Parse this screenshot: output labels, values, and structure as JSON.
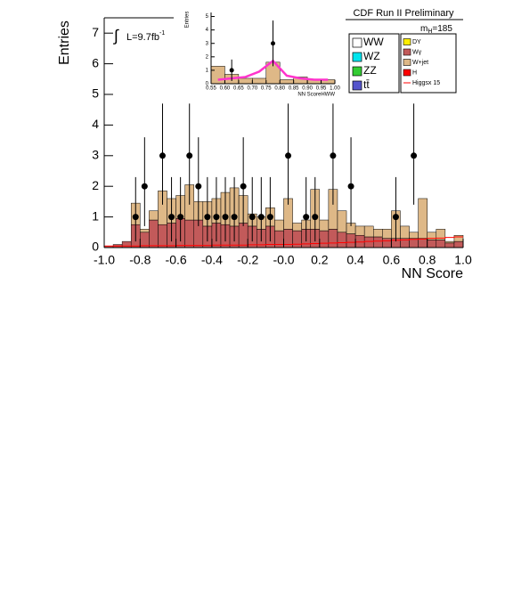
{
  "chart_data": {
    "type": "stacked_histogram",
    "title": "CDF Run II Preliminary",
    "x_label": "NN Score",
    "y_label": "Entries",
    "lumi": {
      "prefix": "∫",
      "text": "L=9.7fb",
      "sup": "-1"
    },
    "mass": {
      "text": "m",
      "sub": "H",
      "rest": "=185"
    },
    "bins": [
      -1.0,
      -0.95,
      -0.9,
      -0.85,
      -0.8,
      -0.75,
      -0.7,
      -0.65,
      -0.6,
      -0.55,
      -0.5,
      -0.45,
      -0.4,
      -0.35,
      -0.3,
      -0.25,
      -0.2,
      -0.15,
      -0.1,
      -0.05,
      0.0,
      0.05,
      0.1,
      0.15,
      0.2,
      0.25,
      0.3,
      0.35,
      0.4,
      0.45,
      0.5,
      0.55,
      0.6,
      0.65,
      0.7,
      0.75,
      0.8,
      0.85,
      0.9,
      0.95,
      1.0
    ],
    "series": [
      {
        "color": "#c25a5a",
        "values": [
          0.05,
          0.1,
          0.2,
          0.75,
          0.5,
          0.9,
          0.75,
          0.8,
          0.95,
          0.9,
          0.9,
          0.7,
          0.8,
          0.75,
          0.7,
          0.8,
          0.7,
          0.6,
          0.7,
          0.55,
          0.6,
          0.55,
          0.6,
          0.6,
          0.55,
          0.6,
          0.5,
          0.45,
          0.4,
          0.35,
          0.35,
          0.3,
          0.3,
          0.3,
          0.3,
          0.3,
          0.25,
          0.25,
          0.15,
          0.2
        ]
      },
      {
        "color": "#deb887",
        "values": [
          0,
          0,
          0,
          0.7,
          0.1,
          0.3,
          1.1,
          0.8,
          0.75,
          1.15,
          0.6,
          0.8,
          0.8,
          1.05,
          1.25,
          0.9,
          0.4,
          0.4,
          0.6,
          0.35,
          1.0,
          0.25,
          0.3,
          1.3,
          0.35,
          1.3,
          0.7,
          0.35,
          0.3,
          0.35,
          0.25,
          0.3,
          0.9,
          0.4,
          0.2,
          1.3,
          0.25,
          0.35,
          0.05,
          0.2
        ]
      }
    ],
    "signal": {
      "color": "#ff0000",
      "values": [
        0.05,
        0.05,
        0.05,
        0.05,
        0.06,
        0.06,
        0.06,
        0.06,
        0.07,
        0.07,
        0.07,
        0.07,
        0.08,
        0.08,
        0.08,
        0.08,
        0.09,
        0.09,
        0.1,
        0.1,
        0.1,
        0.11,
        0.12,
        0.13,
        0.14,
        0.15,
        0.16,
        0.17,
        0.18,
        0.2,
        0.21,
        0.22,
        0.24,
        0.25,
        0.27,
        0.28,
        0.3,
        0.31,
        0.33,
        0.35
      ]
    },
    "data": {
      "x": [
        -0.825,
        -0.775,
        -0.675,
        -0.625,
        -0.575,
        -0.525,
        -0.475,
        -0.425,
        -0.375,
        -0.325,
        -0.275,
        -0.225,
        -0.175,
        -0.125,
        -0.075,
        0.025,
        0.125,
        0.175,
        0.275,
        0.375,
        0.625,
        0.725
      ],
      "values": [
        1,
        2,
        3,
        1,
        1,
        3,
        2,
        1,
        1,
        1,
        1,
        2,
        1,
        1,
        1,
        3,
        1,
        1,
        3,
        2,
        1,
        3
      ],
      "errors_up": [
        1.3,
        1.6,
        1.7,
        1.3,
        1.3,
        1.7,
        1.6,
        1.3,
        1.3,
        1.3,
        1.3,
        1.6,
        1.3,
        1.3,
        1.3,
        1.7,
        1.3,
        1.3,
        1.7,
        1.6,
        1.3,
        1.7
      ],
      "errors_down": [
        0.8,
        1.3,
        1.6,
        0.8,
        0.8,
        1.6,
        1.3,
        0.8,
        0.8,
        0.8,
        0.8,
        1.3,
        0.8,
        0.8,
        0.8,
        1.6,
        0.8,
        0.8,
        1.6,
        1.3,
        0.8,
        1.6
      ]
    },
    "xlim": [
      -1.0,
      1.0
    ],
    "ylim": [
      0,
      7.5
    ],
    "xticks": [
      {
        "value": -1.0,
        "label": "-1.0"
      },
      {
        "value": -0.8,
        "label": "-0.8"
      },
      {
        "value": -0.6,
        "label": "-0.6"
      },
      {
        "value": -0.4,
        "label": "-0.4"
      },
      {
        "value": -0.2,
        "label": "-0.2"
      },
      {
        "value": 0.0,
        "label": "-0.0"
      },
      {
        "value": 0.2,
        "label": "0.2"
      },
      {
        "value": 0.4,
        "label": "0.4"
      },
      {
        "value": 0.6,
        "label": "0.6"
      },
      {
        "value": 0.8,
        "label": "0.8"
      },
      {
        "value": 1.0,
        "label": "1.0"
      }
    ],
    "yticks": [
      0,
      1,
      2,
      3,
      4,
      5,
      6,
      7
    ],
    "legend": [
      {
        "name": "WW",
        "color": "#ffffff"
      },
      {
        "name": "WZ",
        "color": "#00e5ee"
      },
      {
        "name": "ZZ",
        "color": "#33cc33"
      },
      {
        "name": "tt̄",
        "color": "#5555cc"
      },
      {
        "name": "DY",
        "color": "#ffee00"
      },
      {
        "name": "Wγ",
        "color": "#c25a5a"
      },
      {
        "name": "W+jet",
        "color": "#deb887"
      },
      {
        "name": "H",
        "color": "#ff0000"
      },
      {
        "name": "Higgsx 15",
        "color": "#ff0000"
      }
    ],
    "inset": {
      "x_label": "NN ScoreHWW",
      "y_label": "Entries",
      "bins": [
        0.55,
        0.6,
        0.65,
        0.7,
        0.75,
        0.8,
        0.85,
        0.9,
        0.95,
        1.0
      ],
      "values": [
        1.3,
        0.7,
        0.4,
        0.4,
        1.6,
        0.3,
        0.5,
        0.3,
        0.3
      ],
      "color": "#deb887",
      "signal": [
        0.3,
        0.4,
        0.5,
        0.9,
        1.7,
        0.6,
        0.4,
        0.3,
        0.3
      ],
      "signal_color": "#ff33cc",
      "data": {
        "x": [
          0.625,
          0.775
        ],
        "values": [
          1,
          3
        ],
        "errors": [
          0.8,
          1.7
        ]
      },
      "xlim": [
        0.55,
        1.0
      ],
      "ylim": [
        0,
        5.3
      ],
      "xticks": [
        0.55,
        {
          "value": 0.6,
          "label": "0.60"
        },
        0.65,
        {
          "value": 0.7,
          "label": "0.70"
        },
        0.75,
        {
          "value": 0.8,
          "label": "0.80"
        },
        0.85,
        {
          "value": 0.9,
          "label": "0.90"
        },
        0.95,
        {
          "value": 1.0,
          "label": "1.00"
        }
      ],
      "yticks": [
        0,
        1,
        2,
        3,
        4,
        5
      ]
    }
  }
}
